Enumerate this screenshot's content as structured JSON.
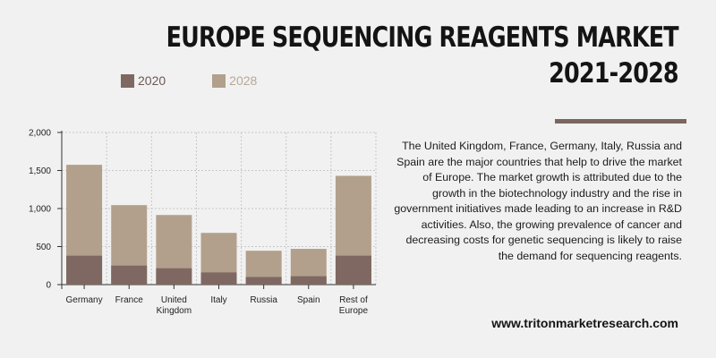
{
  "title": {
    "line1": "EUROPE SEQUENCING REAGENTS MARKET",
    "line2": "2021-2028"
  },
  "description": "The United Kingdom, France, Germany, Italy, Russia and Spain are the major countries that help to drive the market of Europe. The market growth is attributed due to the growth in the biotechnology industry and the rise in government initiatives made leading to an increase in R&D activities.  Also, the growing prevalence of cancer and decreasing costs for genetic sequencing is likely to raise the demand for sequencing reagents.",
  "website": "www.tritonmarketresearch.com",
  "colors": {
    "series_2020": "#7f6861",
    "series_2028": "#b2a08c",
    "accent_bar": "#7b665f",
    "grid": "#c8c8c8"
  },
  "chart_data": {
    "type": "bar",
    "stacked": false,
    "overlapped": true,
    "categories": [
      "Germany",
      "France",
      "United Kingdom",
      "Italy",
      "Russia",
      "Spain",
      "Rest of Europe"
    ],
    "category_lines": [
      [
        "Germany"
      ],
      [
        "France"
      ],
      [
        "United",
        "Kingdom"
      ],
      [
        "Italy"
      ],
      [
        "Russia"
      ],
      [
        "Spain"
      ],
      [
        "Rest of",
        "Europe"
      ]
    ],
    "series": [
      {
        "name": "2020",
        "values": [
          380,
          250,
          215,
          160,
          100,
          110,
          380
        ]
      },
      {
        "name": "2028",
        "values": [
          1575,
          1045,
          915,
          680,
          445,
          470,
          1430
        ]
      }
    ],
    "yticks": [
      "0",
      "500",
      "1,000",
      "1,500",
      "2,000"
    ],
    "ylim": [
      0,
      2000
    ],
    "grid": true,
    "legend_position": "top"
  }
}
